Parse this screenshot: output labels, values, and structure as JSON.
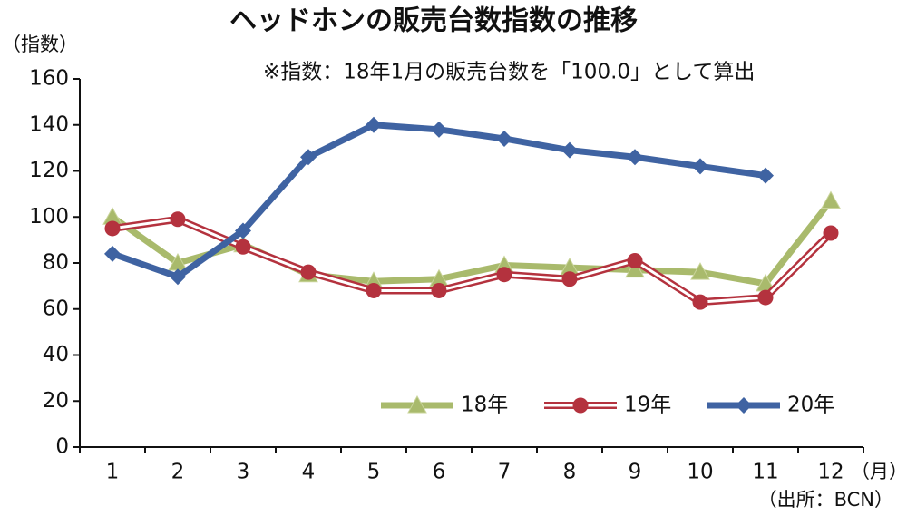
{
  "chart_data": {
    "type": "line",
    "title": "ヘッドホンの販売台数指数の推移",
    "y_label": "（指数）",
    "note": "※指数：18年1月の販売台数を「100.0」として算出",
    "x_label": "（月）",
    "source": "（出所：BCN）",
    "categories": [
      "1",
      "2",
      "3",
      "4",
      "5",
      "6",
      "7",
      "8",
      "9",
      "10",
      "11",
      "12"
    ],
    "series": [
      {
        "name": "18年",
        "color": "#a9ba6c",
        "marker": "triangle",
        "values": [
          100,
          80,
          88,
          75,
          72,
          73,
          79,
          78,
          77,
          76,
          71,
          107
        ]
      },
      {
        "name": "19年",
        "color": "#b4323e",
        "marker": "circle",
        "values": [
          95,
          99,
          87,
          76,
          68,
          68,
          75,
          73,
          81,
          63,
          65,
          93
        ]
      },
      {
        "name": "20年",
        "color": "#3f63a2",
        "marker": "diamond",
        "values": [
          84,
          74,
          94,
          126,
          140,
          138,
          134,
          129,
          126,
          122,
          118,
          null
        ]
      }
    ],
    "ylim": [
      0,
      160
    ],
    "yticks": [
      0,
      20,
      40,
      60,
      80,
      100,
      120,
      140,
      160
    ],
    "grid": false,
    "legend": "lower right"
  }
}
